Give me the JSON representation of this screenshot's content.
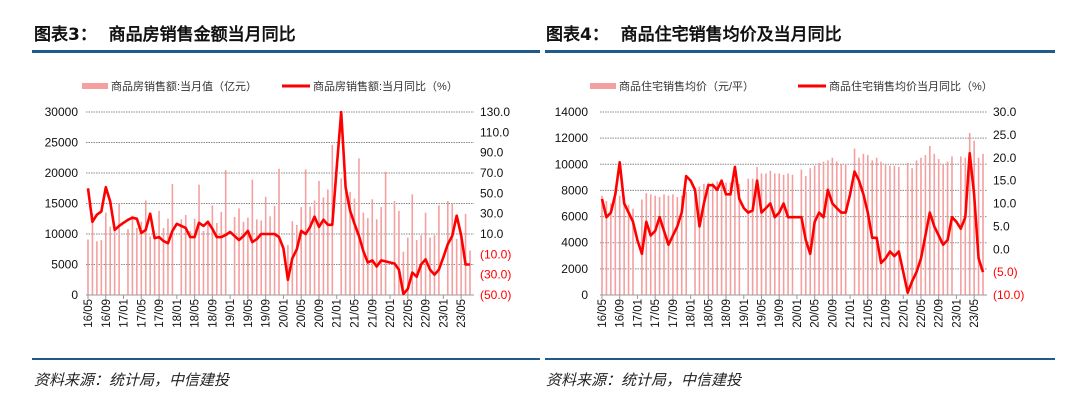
{
  "colors": {
    "bar": "#f4a0a0",
    "line": "#ff0000",
    "rule": "#1f5a8c",
    "negative_tick": "#ff0000",
    "grid": "#888888"
  },
  "chart_data": [
    {
      "heading": "图表3：  商品房销售金额当月同比",
      "source": "资料来源：统计局，中信建投",
      "type": "bar+line",
      "x_start": "2016-05",
      "x_end": "2023-07",
      "xtick_labels": [
        "16/05",
        "16/09",
        "17/01",
        "17/05",
        "17/09",
        "18/01",
        "18/05",
        "18/09",
        "19/01",
        "19/05",
        "19/09",
        "20/01",
        "20/05",
        "20/09",
        "21/01",
        "21/05",
        "21/09",
        "22/01",
        "22/05",
        "22/09",
        "23/01",
        "23/05"
      ],
      "left_axis": {
        "ylim": [
          0,
          30000
        ],
        "ticks": [
          "30000",
          "25000",
          "20000",
          "15000",
          "10000",
          "5000",
          "0"
        ]
      },
      "right_axis": {
        "ylim": [
          -50,
          130
        ],
        "ticks": [
          "130.0",
          "110.0",
          "90.0",
          "70.0",
          "50.0",
          "30.0",
          "10.0",
          "(10.0)",
          "(30.0)",
          "(50.0)"
        ]
      },
      "grid": "horizontal dotted",
      "legend_placement": "top",
      "series": [
        {
          "name": "商品房销售额:当月值（亿元）",
          "type": "bar",
          "axis": "left",
          "values": [
            9100,
            13400,
            8800,
            9000,
            13500,
            11200,
            11000,
            15000,
            null,
            10800,
            13000,
            11000,
            12000,
            15500,
            9600,
            10000,
            13800,
            11000,
            12500,
            18200,
            null,
            12400,
            13100,
            10500,
            12500,
            18100,
            10500,
            11800,
            14700,
            11800,
            13600,
            20500,
            null,
            12800,
            14200,
            12000,
            12700,
            18900,
            12400,
            12200,
            16100,
            12900,
            14600,
            20700,
            null,
            8200,
            12100,
            11500,
            14400,
            20600,
            14500,
            15500,
            18700,
            16000,
            17300,
            24600,
            null,
            19100,
            16900,
            16900,
            15800,
            22400,
            13500,
            12600,
            15700,
            12400,
            14400,
            20200,
            null,
            15400,
            13800,
            7100,
            9400,
            16500,
            9000,
            9800,
            13500,
            9400,
            9800,
            14700,
            null,
            15400,
            15000,
            9200,
            9200,
            13300,
            7300
          ]
        },
        {
          "name": "商品房销售额:当月同比（%）",
          "type": "line",
          "axis": "right",
          "values": [
            55,
            22,
            29,
            32,
            56,
            42,
            14,
            18,
            21,
            24,
            26,
            25,
            11,
            14,
            30,
            6,
            7,
            3,
            1,
            13,
            20,
            18,
            16,
            7,
            7,
            21,
            18,
            22,
            15,
            7,
            7,
            9,
            12,
            8,
            4,
            8,
            13,
            2,
            5,
            10,
            10,
            10,
            10,
            7,
            -4,
            -35,
            -14,
            -5,
            13,
            10,
            17,
            27,
            17,
            24,
            19,
            19,
            75,
            130,
            56,
            33,
            20,
            8,
            -7,
            -18,
            -16,
            -22,
            -16,
            -17,
            -18,
            -19,
            -25,
            -49,
            -44,
            -28,
            -32,
            -20,
            -15,
            -25,
            -30,
            -25,
            -13,
            0,
            8,
            28,
            9,
            -20,
            -20
          ]
        }
      ]
    },
    {
      "heading": "图表4：  商品住宅销售均价及当月同比",
      "source": "资料来源：统计局，中信建投",
      "type": "bar+line",
      "x_start": "2016-05",
      "x_end": "2023-07",
      "xtick_labels": [
        "16/05",
        "16/09",
        "17/01",
        "17/05",
        "17/09",
        "18/01",
        "18/05",
        "18/09",
        "19/01",
        "19/05",
        "19/09",
        "20/01",
        "20/05",
        "20/09",
        "21/01",
        "21/05",
        "21/09",
        "22/01",
        "22/05",
        "22/09",
        "23/01",
        "23/05"
      ],
      "left_axis": {
        "ylim": [
          0,
          14000
        ],
        "ticks": [
          "14000",
          "12000",
          "10000",
          "8000",
          "6000",
          "4000",
          "2000",
          "0"
        ]
      },
      "right_axis": {
        "ylim": [
          -10,
          30
        ],
        "ticks": [
          "30.0",
          "25.0",
          "20.0",
          "15.0",
          "10.0",
          "5.0",
          "0.0",
          "(5.0)",
          "(10.0)"
        ]
      },
      "grid": "horizontal dotted",
      "legend_placement": "top",
      "series": [
        {
          "name": "商品住宅销售均价（元/平）",
          "type": "bar",
          "axis": "left",
          "values": [
            7600,
            7200,
            7000,
            7400,
            7600,
            7500,
            6900,
            6600,
            null,
            7300,
            7800,
            7700,
            7600,
            7500,
            7700,
            7600,
            7700,
            7500,
            7600,
            7900,
            null,
            8000,
            8300,
            8500,
            8600,
            8600,
            8700,
            8700,
            8600,
            8600,
            8800,
            8500,
            null,
            8900,
            8900,
            9800,
            9300,
            9300,
            9500,
            9300,
            9300,
            9200,
            9300,
            9200,
            null,
            9600,
            9100,
            9700,
            9900,
            10100,
            10200,
            10300,
            10500,
            10200,
            10000,
            10000,
            null,
            11200,
            10500,
            10800,
            10700,
            10300,
            10500,
            10200,
            10000,
            9900,
            9900,
            9800,
            null,
            10100,
            9700,
            10300,
            10500,
            10700,
            11400,
            10800,
            10400,
            10000,
            10200,
            10600,
            null,
            10600,
            10500,
            12400,
            11800,
            10500,
            10800
          ]
        },
        {
          "name": "商品住宅销售均价当月同比（%）",
          "type": "line",
          "axis": "right",
          "values": [
            11,
            7,
            8,
            12,
            19,
            10,
            8,
            6,
            2,
            -1,
            6,
            3,
            4,
            7,
            4,
            1,
            3,
            5,
            8,
            16,
            15,
            13,
            5,
            10,
            14,
            14,
            13,
            15,
            12,
            12,
            18,
            11,
            9,
            8,
            8.5,
            15,
            8,
            9,
            10,
            7,
            8,
            10,
            7,
            7,
            7,
            7,
            2,
            -1,
            6,
            8,
            7,
            13,
            10,
            9,
            8,
            8,
            12,
            17,
            15,
            12,
            8,
            2.5,
            2.5,
            -3,
            -2,
            -0.5,
            -1.5,
            -0.5,
            -5,
            -9.5,
            -7,
            -5,
            -2,
            3,
            8,
            5,
            3,
            1,
            2,
            7,
            6,
            4.5,
            7,
            21,
            12,
            -2,
            -5
          ]
        }
      ]
    }
  ]
}
